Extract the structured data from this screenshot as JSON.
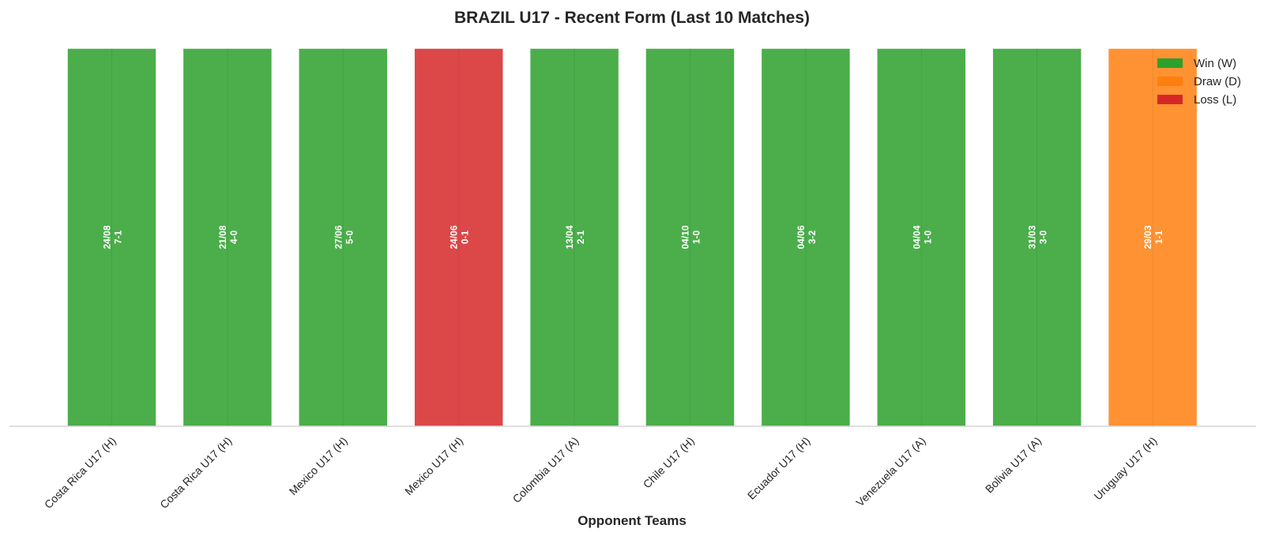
{
  "chart_data": {
    "type": "bar",
    "title": "BRAZIL U17 - Recent Form (Last 10 Matches)",
    "xlabel": "Opponent Teams",
    "ylabel": "",
    "ylim": [
      0,
      1
    ],
    "grid": false,
    "legend_position": "top-right",
    "categories": [
      "Costa Rica U17 (H)",
      "Costa Rica U17 (H)",
      "Mexico U17 (H)",
      "Mexico U17 (H)",
      "Colombia U17 (A)",
      "Chile U17 (H)",
      "Ecuador U17 (H)",
      "Venezuela U17 (A)",
      "Bolivia U17 (A)",
      "Uruguay U17 (H)"
    ],
    "values": [
      1,
      1,
      1,
      1,
      1,
      1,
      1,
      1,
      1,
      1
    ],
    "results": [
      "W",
      "W",
      "W",
      "L",
      "W",
      "W",
      "W",
      "W",
      "W",
      "D"
    ],
    "dates": [
      "24/08",
      "21/08",
      "27/06",
      "24/06",
      "13/04",
      "04/10",
      "04/06",
      "04/04",
      "31/03",
      "29/03"
    ],
    "scores": [
      "7-1",
      "4-0",
      "5-0",
      "0-1",
      "2-1",
      "1-0",
      "3-2",
      "1-0",
      "3-0",
      "1-1"
    ],
    "legend": [
      {
        "key": "W",
        "label": "Win (W)",
        "color": "#2ca02c"
      },
      {
        "key": "D",
        "label": "Draw (D)",
        "color": "#ff7f0e"
      },
      {
        "key": "L",
        "label": "Loss (L)",
        "color": "#d62728"
      }
    ]
  }
}
